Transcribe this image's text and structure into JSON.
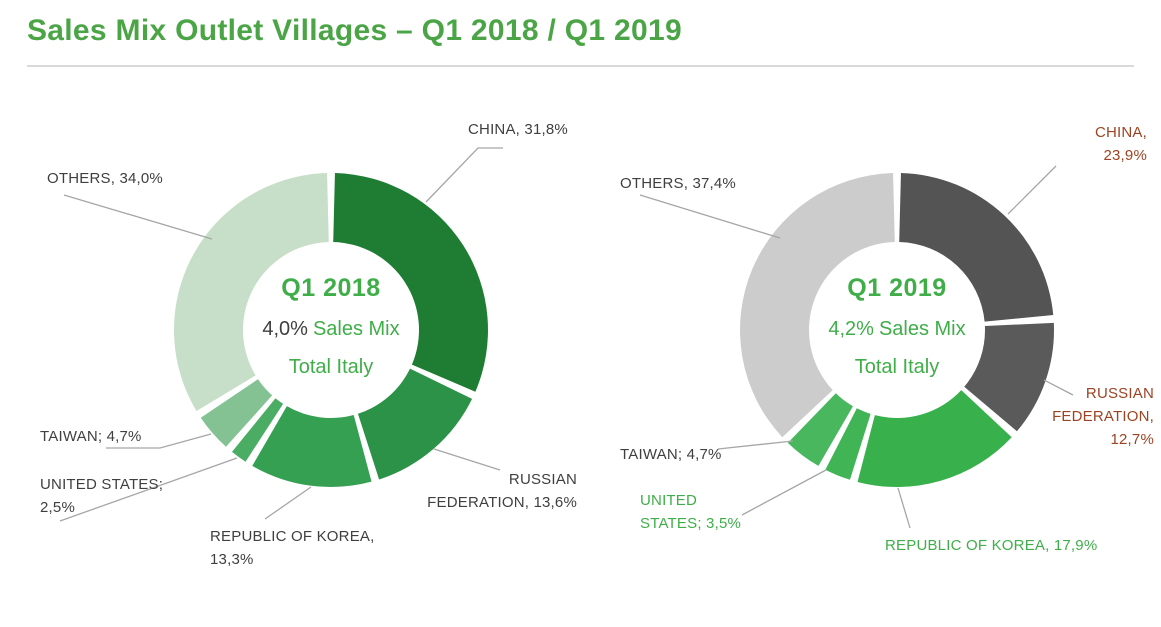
{
  "title": "Sales Mix Outlet Villages – Q1 2018 / Q1 2019",
  "colors": {
    "title_green": "#4ba546",
    "center_green": "#3fae49",
    "label_dark": "#3f3f3f",
    "label_red": "#9b4423",
    "label_green": "#3fae49",
    "leader_gray": "#a6a6a6",
    "divider_gray": "#d9d9d9"
  },
  "chart_data": [
    {
      "type": "pie",
      "subtype": "donut",
      "title": "Q1 2018",
      "direction": "clockwise",
      "start_angle_deg": 0,
      "legend_position": "none",
      "categories": [
        "CHINA",
        "RUSSIAN FEDERATION",
        "REPUBLIC OF KOREA",
        "UNITED STATES",
        "TAIWAN",
        "OTHERS"
      ],
      "values": [
        31.8,
        13.6,
        13.3,
        2.5,
        4.7,
        34.0
      ],
      "slice_colors": [
        "#1e7d33",
        "#2c9247",
        "#35a051",
        "#4aad63",
        "#84c293",
        "#c7dfc9"
      ],
      "center": {
        "period": "Q1 2018",
        "value": "4,0%",
        "label": "Sales Mix",
        "sublabel": "Total Italy",
        "value_color": "#3f3f3f"
      },
      "callouts": [
        {
          "name": "CHINA",
          "text": "CHINA, 31,8%",
          "color": "#3f3f3f"
        },
        {
          "name": "RUSSIAN FEDERATION",
          "text": "RUSSIAN\nFEDERATION, 13,6%",
          "color": "#3f3f3f"
        },
        {
          "name": "REPUBLIC OF KOREA",
          "text": "REPUBLIC OF KOREA,\n13,3%",
          "color": "#3f3f3f"
        },
        {
          "name": "UNITED STATES",
          "text": "UNITED STATES;\n2,5%",
          "color": "#3f3f3f"
        },
        {
          "name": "TAIWAN",
          "text": "TAIWAN; 4,7%",
          "color": "#3f3f3f"
        },
        {
          "name": "OTHERS",
          "text": "OTHERS, 34,0%",
          "color": "#3f3f3f"
        }
      ]
    },
    {
      "type": "pie",
      "subtype": "donut",
      "title": "Q1 2019",
      "direction": "clockwise",
      "start_angle_deg": 0,
      "legend_position": "none",
      "categories": [
        "CHINA",
        "RUSSIAN FEDERATION",
        "REPUBLIC OF KOREA",
        "UNITED STATES",
        "TAIWAN",
        "OTHERS"
      ],
      "values": [
        23.9,
        12.7,
        17.9,
        3.5,
        4.7,
        37.4
      ],
      "slice_colors": [
        "#545454",
        "#5a5a5a",
        "#38b04b",
        "#41b456",
        "#48b75d",
        "#cccccc"
      ],
      "center": {
        "period": "Q1 2019",
        "value": "4,2%",
        "label": "Sales Mix",
        "sublabel": "Total Italy",
        "value_color": "#3fae49"
      },
      "callouts": [
        {
          "name": "CHINA",
          "text": "CHINA,\n23,9%",
          "color": "#9b4423"
        },
        {
          "name": "RUSSIAN FEDERATION",
          "text": "RUSSIAN\nFEDERATION,\n12,7%",
          "color": "#9b4423"
        },
        {
          "name": "REPUBLIC OF KOREA",
          "text": "REPUBLIC OF KOREA, 17,9%",
          "color": "#3fae49"
        },
        {
          "name": "UNITED STATES",
          "text": "UNITED\nSTATES; 3,5%",
          "color": "#3fae49"
        },
        {
          "name": "TAIWAN",
          "text": "TAIWAN; 4,7%",
          "color": "#3f3f3f"
        },
        {
          "name": "OTHERS",
          "text": "OTHERS, 37,4%",
          "color": "#3f3f3f"
        }
      ]
    }
  ]
}
